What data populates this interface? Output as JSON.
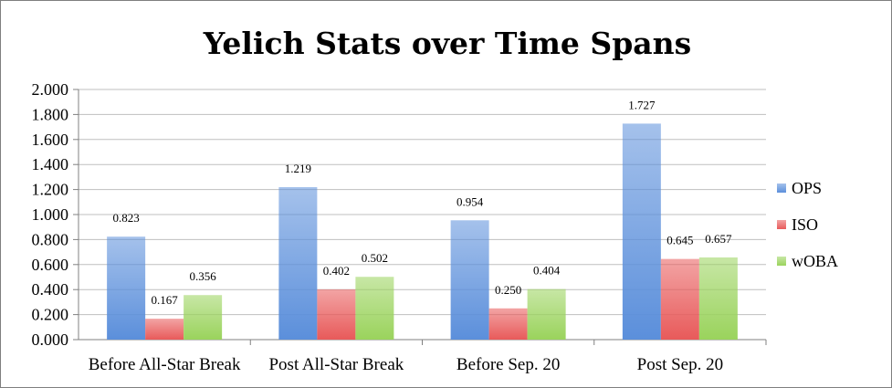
{
  "chart_data": {
    "type": "bar",
    "title": "Yelich Stats over Time Spans",
    "categories": [
      "Before All-Star Break",
      "Post All-Star Break",
      "Before Sep. 20",
      "Post Sep. 20"
    ],
    "series": [
      {
        "name": "OPS",
        "values": [
          0.823,
          1.219,
          0.954,
          1.727
        ],
        "labels": [
          "0.823",
          "1.219",
          "0.954",
          "1.727"
        ],
        "color": "#5b8fdb"
      },
      {
        "name": "ISO",
        "values": [
          0.167,
          0.402,
          0.25,
          0.645
        ],
        "labels": [
          "0.167",
          "0.402",
          "0.250",
          "0.645"
        ],
        "color": "#e85a5a"
      },
      {
        "name": "wOBA",
        "values": [
          0.356,
          0.502,
          0.404,
          0.657
        ],
        "labels": [
          "0.356",
          "0.502",
          "0.404",
          "0.657"
        ],
        "color": "#9ad35c"
      }
    ],
    "ylim": [
      0,
      2
    ],
    "yticks": [
      "0.000",
      "0.200",
      "0.400",
      "0.600",
      "0.800",
      "1.000",
      "1.200",
      "1.400",
      "1.600",
      "1.800",
      "2.000"
    ],
    "grid": true,
    "legend_position": "right"
  }
}
